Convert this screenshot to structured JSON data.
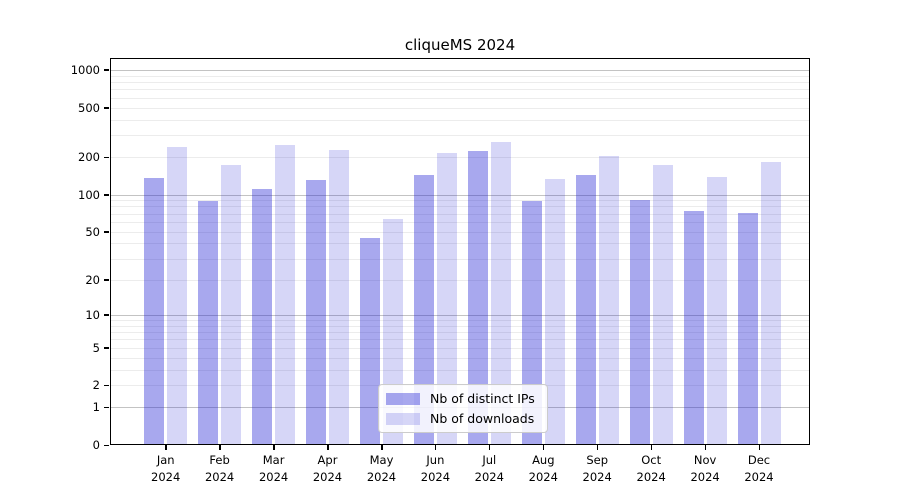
{
  "chart_data": {
    "type": "bar",
    "title": "cliqueMS 2024",
    "categories": [
      "Jan",
      "Feb",
      "Mar",
      "Apr",
      "May",
      "Jun",
      "Jul",
      "Aug",
      "Sep",
      "Oct",
      "Nov",
      "Dec"
    ],
    "year_label": "2024",
    "series": [
      {
        "name": "Nb of distinct IPs",
        "color": "rgba(30,30,210,0.39)",
        "values": [
          135,
          88,
          110,
          131,
          44,
          144,
          225,
          89,
          144,
          90,
          73,
          71
        ]
      },
      {
        "name": "Nb of downloads",
        "color": "rgba(30,30,210,0.18)",
        "values": [
          241,
          174,
          250,
          227,
          63,
          215,
          267,
          133,
          203,
          174,
          138,
          184
        ]
      }
    ],
    "yticks": [
      0,
      1,
      2,
      5,
      10,
      20,
      50,
      100,
      200,
      500,
      1000
    ],
    "scale": "log10(x+1)",
    "ylim": [
      0,
      1300
    ],
    "grid": {
      "minor_color": "#ececec",
      "major_color": "#c3c3c3",
      "major_values": [
        1,
        10,
        100,
        1000
      ]
    },
    "legend_position": "lower center",
    "axis_color": "#000000",
    "background_color": "#ffffff"
  }
}
